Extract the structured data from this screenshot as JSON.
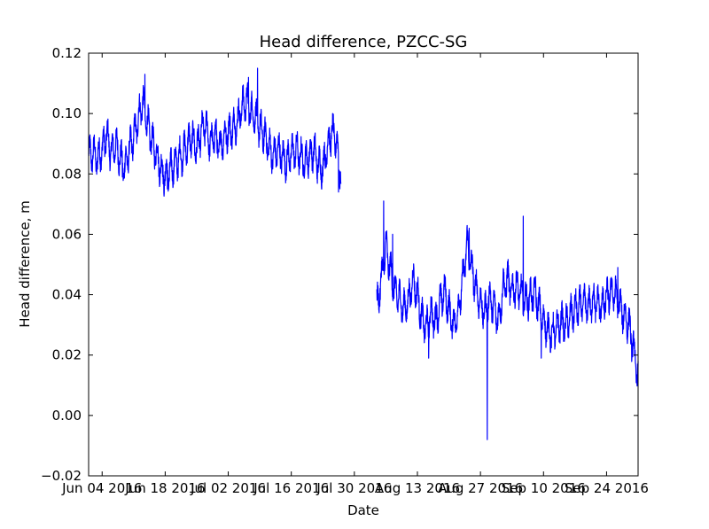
{
  "chart_data": {
    "type": "line",
    "title": "Head difference, PZCC-SG",
    "xlabel": "Date",
    "ylabel": "Head difference, m",
    "xlim": [
      "2016-06-01",
      "2016-10-01"
    ],
    "ylim": [
      -0.02,
      0.12
    ],
    "grid": false,
    "line_color": "#0000ff",
    "x_ticks": [
      {
        "date": "2016-06-04",
        "label": "Jun 04 2016"
      },
      {
        "date": "2016-06-18",
        "label": "Jun 18 2016"
      },
      {
        "date": "2016-07-02",
        "label": "Jul 02 2016"
      },
      {
        "date": "2016-07-16",
        "label": "Jul 16 2016"
      },
      {
        "date": "2016-07-30",
        "label": "Jul 30 2016"
      },
      {
        "date": "2016-08-13",
        "label": "Aug 13 2016"
      },
      {
        "date": "2016-08-27",
        "label": "Aug 27 2016"
      },
      {
        "date": "2016-09-10",
        "label": "Sep 10 2016"
      },
      {
        "date": "2016-09-24",
        "label": "Sep 24 2016"
      }
    ],
    "y_ticks": [
      {
        "value": -0.02,
        "label": "−0.02"
      },
      {
        "value": 0.0,
        "label": "0.00"
      },
      {
        "value": 0.02,
        "label": "0.02"
      },
      {
        "value": 0.04,
        "label": "0.04"
      },
      {
        "value": 0.06,
        "label": "0.06"
      },
      {
        "value": 0.08,
        "label": "0.08"
      },
      {
        "value": 0.1,
        "label": "0.10"
      },
      {
        "value": 0.12,
        "label": "0.12"
      }
    ],
    "series": [
      {
        "segments": [
          [
            [
              "2016-06-01",
              0.086
            ],
            [
              "2016-06-02",
              0.087
            ],
            [
              "2016-06-03",
              0.085
            ],
            [
              "2016-06-04",
              0.088
            ],
            [
              "2016-06-05",
              0.093
            ],
            [
              "2016-06-06",
              0.087
            ],
            [
              "2016-06-07",
              0.09
            ],
            [
              "2016-06-08",
              0.085
            ],
            [
              "2016-06-09",
              0.082
            ],
            [
              "2016-06-10",
              0.088
            ],
            [
              "2016-06-11",
              0.092
            ],
            [
              "2016-06-12",
              0.098
            ],
            [
              "2016-06-13",
              0.104
            ],
            [
              "2016-06-14",
              0.097
            ],
            [
              "2016-06-15",
              0.091
            ],
            [
              "2016-06-16",
              0.087
            ],
            [
              "2016-06-17",
              0.082
            ],
            [
              "2016-06-18",
              0.079
            ],
            [
              "2016-06-19",
              0.081
            ],
            [
              "2016-06-20",
              0.083
            ],
            [
              "2016-06-21",
              0.085
            ],
            [
              "2016-06-22",
              0.087
            ],
            [
              "2016-06-23",
              0.09
            ],
            [
              "2016-06-24",
              0.092
            ],
            [
              "2016-06-25",
              0.088
            ],
            [
              "2016-06-26",
              0.094
            ],
            [
              "2016-06-27",
              0.096
            ],
            [
              "2016-06-28",
              0.09
            ],
            [
              "2016-06-29",
              0.093
            ],
            [
              "2016-06-30",
              0.089
            ],
            [
              "2016-07-01",
              0.092
            ],
            [
              "2016-07-02",
              0.094
            ],
            [
              "2016-07-03",
              0.095
            ],
            [
              "2016-07-04",
              0.097
            ],
            [
              "2016-07-05",
              0.102
            ],
            [
              "2016-07-06",
              0.104
            ],
            [
              "2016-07-07",
              0.101
            ],
            [
              "2016-07-08",
              0.099
            ],
            [
              "2016-07-09",
              0.095
            ],
            [
              "2016-07-10",
              0.093
            ],
            [
              "2016-07-11",
              0.089
            ],
            [
              "2016-07-12",
              0.086
            ],
            [
              "2016-07-13",
              0.088
            ],
            [
              "2016-07-14",
              0.086
            ],
            [
              "2016-07-15",
              0.084
            ],
            [
              "2016-07-16",
              0.087
            ],
            [
              "2016-07-17",
              0.088
            ],
            [
              "2016-07-18",
              0.086
            ],
            [
              "2016-07-19",
              0.084
            ],
            [
              "2016-07-20",
              0.086
            ],
            [
              "2016-07-21",
              0.088
            ],
            [
              "2016-07-22",
              0.083
            ],
            [
              "2016-07-23",
              0.082
            ],
            [
              "2016-07-24",
              0.089
            ],
            [
              "2016-07-25",
              0.094
            ],
            [
              "2016-07-26",
              0.091
            ],
            [
              "2016-07-27",
              0.079
            ]
          ],
          [
            [
              "2016-08-04",
              0.036
            ],
            [
              "2016-08-05",
              0.045
            ],
            [
              "2016-08-06",
              0.056
            ],
            [
              "2016-08-07",
              0.048
            ],
            [
              "2016-08-08",
              0.041
            ],
            [
              "2016-08-09",
              0.039
            ],
            [
              "2016-08-10",
              0.035
            ],
            [
              "2016-08-11",
              0.038
            ],
            [
              "2016-08-12",
              0.045
            ],
            [
              "2016-08-13",
              0.04
            ],
            [
              "2016-08-14",
              0.032
            ],
            [
              "2016-08-15",
              0.029
            ],
            [
              "2016-08-16",
              0.034
            ],
            [
              "2016-08-17",
              0.031
            ],
            [
              "2016-08-18",
              0.037
            ],
            [
              "2016-08-19",
              0.041
            ],
            [
              "2016-08-20",
              0.035
            ],
            [
              "2016-08-21",
              0.03
            ],
            [
              "2016-08-22",
              0.034
            ],
            [
              "2016-08-23",
              0.044
            ],
            [
              "2016-08-24",
              0.057
            ],
            [
              "2016-08-25",
              0.049
            ],
            [
              "2016-08-26",
              0.042
            ],
            [
              "2016-08-27",
              0.037
            ],
            [
              "2016-08-28",
              0.034
            ],
            [
              "2016-08-29",
              0.039
            ],
            [
              "2016-08-30",
              0.036
            ],
            [
              "2016-08-31",
              0.031
            ],
            [
              "2016-09-01",
              0.042
            ],
            [
              "2016-09-02",
              0.045
            ],
            [
              "2016-09-03",
              0.041
            ],
            [
              "2016-09-04",
              0.043
            ],
            [
              "2016-09-05",
              0.04
            ],
            [
              "2016-09-06",
              0.038
            ],
            [
              "2016-09-07",
              0.039
            ],
            [
              "2016-09-08",
              0.041
            ],
            [
              "2016-09-09",
              0.036
            ],
            [
              "2016-09-10",
              0.031
            ],
            [
              "2016-09-11",
              0.028
            ],
            [
              "2016-09-12",
              0.027
            ],
            [
              "2016-09-13",
              0.029
            ],
            [
              "2016-09-14",
              0.031
            ],
            [
              "2016-09-15",
              0.03
            ],
            [
              "2016-09-16",
              0.033
            ],
            [
              "2016-09-17",
              0.035
            ],
            [
              "2016-09-18",
              0.036
            ],
            [
              "2016-09-19",
              0.037
            ],
            [
              "2016-09-20",
              0.036
            ],
            [
              "2016-09-21",
              0.038
            ],
            [
              "2016-09-22",
              0.037
            ],
            [
              "2016-09-23",
              0.036
            ],
            [
              "2016-09-24",
              0.039
            ],
            [
              "2016-09-25",
              0.041
            ],
            [
              "2016-09-26",
              0.04
            ],
            [
              "2016-09-27",
              0.036
            ],
            [
              "2016-09-28",
              0.033
            ],
            [
              "2016-09-29",
              0.03
            ],
            [
              "2016-09-30",
              0.022
            ],
            [
              "2016-10-01",
              0.012
            ]
          ]
        ],
        "extremes": [
          [
            "2016-06-13",
            0.113
          ],
          [
            "2016-06-08",
            0.079
          ],
          [
            "2016-06-18",
            0.075
          ],
          [
            "2016-07-08",
            0.115
          ],
          [
            "2016-07-06",
            0.112
          ],
          [
            "2016-07-26",
            0.074
          ],
          [
            "2016-07-27",
            0.077
          ],
          [
            "2016-08-04",
            0.034
          ],
          [
            "2016-08-05",
            0.071
          ],
          [
            "2016-08-07",
            0.06
          ],
          [
            "2016-08-15",
            0.019
          ],
          [
            "2016-08-24",
            0.062
          ],
          [
            "2016-08-28",
            -0.008
          ],
          [
            "2016-09-05",
            0.066
          ],
          [
            "2016-09-09",
            0.019
          ],
          [
            "2016-09-26",
            0.049
          ],
          [
            "2016-10-01",
            0.009
          ]
        ]
      }
    ]
  }
}
